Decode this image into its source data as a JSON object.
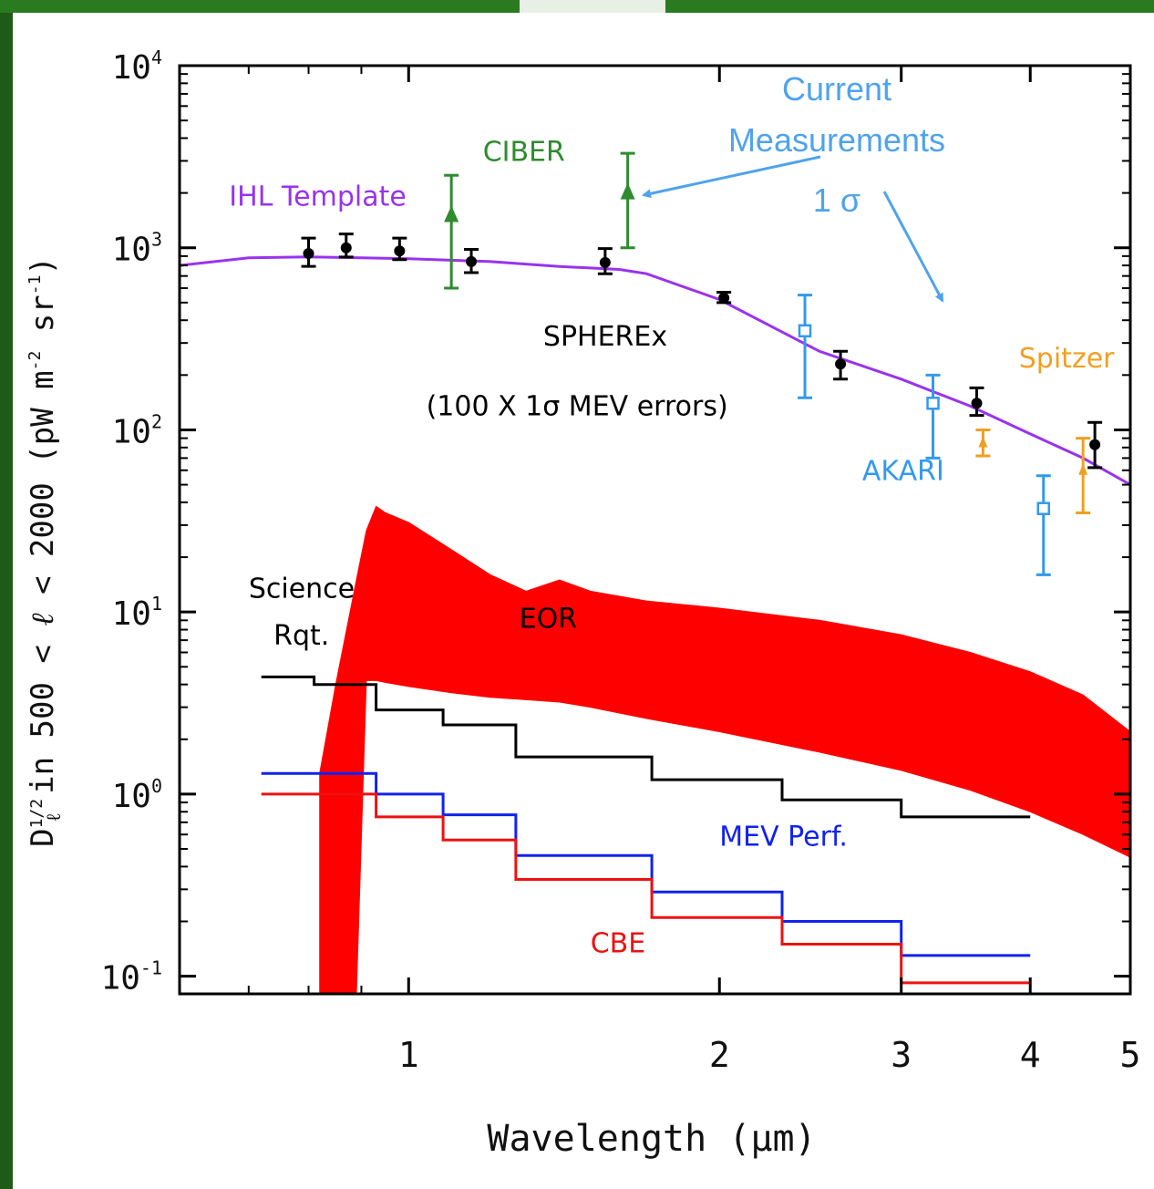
{
  "chart_data": {
    "type": "line",
    "xlabel": "Wavelength (μm)",
    "ylabel": "D_ℓ^{1/2} in 500 < ℓ < 2000 (pW m⁻² sr⁻¹)",
    "ylabel_parts": {
      "D": "D",
      "sub": "ℓ",
      "sup": "1/2",
      "mid": " in 500 < ",
      "ell": "ℓ",
      "tail": " < 2000  (pW m",
      "e1": "-2",
      "sr": " sr",
      "e2": "-1",
      "close": ")"
    },
    "xscale": "log",
    "yscale": "log",
    "xlim": [
      0.6,
      5.0
    ],
    "ylim": [
      0.08,
      10000
    ],
    "xticks": [
      1,
      2,
      3,
      4,
      5
    ],
    "xtick_labels": [
      "1",
      "2",
      "3",
      "4",
      "5"
    ],
    "yticks": [
      0.1,
      1,
      10,
      100,
      1000,
      10000
    ],
    "ytick_labels": [
      {
        "base": "10",
        "exp": "-1"
      },
      {
        "base": "10",
        "exp": "0"
      },
      {
        "base": "10",
        "exp": "1"
      },
      {
        "base": "10",
        "exp": "2"
      },
      {
        "base": "10",
        "exp": "3"
      },
      {
        "base": "10",
        "exp": "4"
      }
    ],
    "series": [
      {
        "name": "IHL Template",
        "kind": "line",
        "color": "#9933ee",
        "x": [
          0.6,
          0.7,
          0.8,
          0.9,
          1.0,
          1.2,
          1.4,
          1.6,
          1.7,
          2.0,
          2.5,
          3.0,
          3.5,
          4.0,
          4.5,
          5.0
        ],
        "y": [
          800,
          880,
          890,
          880,
          870,
          840,
          790,
          760,
          720,
          520,
          270,
          190,
          135,
          95,
          70,
          50
        ]
      },
      {
        "name": "SPHEREx",
        "kind": "errorbar",
        "color": "#000000",
        "x": [
          0.8,
          0.87,
          0.98,
          1.15,
          1.55,
          2.02,
          2.62,
          3.55,
          4.62
        ],
        "y": [
          930,
          1000,
          960,
          840,
          830,
          530,
          230,
          140,
          83
        ],
        "ylo": [
          790,
          890,
          860,
          730,
          720,
          500,
          190,
          120,
          62
        ],
        "yhi": [
          1130,
          1190,
          1130,
          980,
          990,
          570,
          270,
          170,
          110
        ]
      },
      {
        "name": "CIBER",
        "kind": "errorbar",
        "color": "#2e8b2e",
        "x": [
          1.1,
          1.63
        ],
        "y": [
          1500,
          2000
        ],
        "ylo": [
          600,
          1000
        ],
        "yhi": [
          2500,
          3300
        ]
      },
      {
        "name": "AKARI",
        "kind": "errorbar",
        "color": "#3399ee",
        "x": [
          2.42,
          3.22,
          4.12
        ],
        "y": [
          350,
          140,
          37
        ],
        "ylo": [
          150,
          70,
          16
        ],
        "yhi": [
          550,
          200,
          56
        ]
      },
      {
        "name": "Spitzer",
        "kind": "errorbar",
        "color": "#f0a020",
        "x": [
          3.6,
          4.5
        ],
        "y": [
          85,
          60
        ],
        "ylo": [
          72,
          35
        ],
        "yhi": [
          100,
          90
        ]
      },
      {
        "name": "Science Rqt.",
        "kind": "step",
        "color": "#000000",
        "edges": [
          0.72,
          0.81,
          0.93,
          1.08,
          1.27,
          1.72,
          2.3,
          3.0,
          4.0
        ],
        "values": [
          4.4,
          4.0,
          2.9,
          2.4,
          1.6,
          1.2,
          0.93,
          0.75
        ]
      },
      {
        "name": "MEV Perf.",
        "kind": "step",
        "color": "#1122ee",
        "edges": [
          0.72,
          0.93,
          1.08,
          1.27,
          1.72,
          2.3,
          3.0,
          4.0
        ],
        "values": [
          1.3,
          1.0,
          0.77,
          0.46,
          0.29,
          0.2,
          0.13
        ]
      },
      {
        "name": "CBE",
        "kind": "step",
        "color": "#ee1111",
        "edges": [
          0.72,
          0.93,
          1.08,
          1.27,
          1.72,
          2.3,
          3.0,
          4.0
        ],
        "values": [
          1.0,
          0.75,
          0.56,
          0.34,
          0.21,
          0.15,
          0.092
        ]
      },
      {
        "name": "EOR",
        "kind": "band",
        "color": "#ff0000",
        "x": [
          0.82,
          0.85,
          0.89,
          0.91,
          0.93,
          0.95,
          1.0,
          1.1,
          1.2,
          1.3,
          1.4,
          1.5,
          1.7,
          2.0,
          2.5,
          3.0,
          3.5,
          4.0,
          4.5,
          5.0
        ],
        "upper": [
          1.3,
          4.0,
          15,
          28,
          38,
          35,
          31,
          22,
          16,
          13,
          15,
          13,
          11.5,
          10.5,
          9.0,
          7.5,
          6.0,
          4.7,
          3.5,
          2.2
        ],
        "lower": [
          0.08,
          0.08,
          0.08,
          4.2,
          4.2,
          4.1,
          3.9,
          3.6,
          3.4,
          3.3,
          3.2,
          3.0,
          2.6,
          2.2,
          1.7,
          1.35,
          1.05,
          0.8,
          0.6,
          0.45
        ]
      }
    ],
    "text_labels": [
      {
        "id": "ihl",
        "text": "IHL Template",
        "x": 0.67,
        "y": 1700,
        "color": "#9933ee"
      },
      {
        "id": "ciber",
        "text": "CIBER",
        "x": 1.18,
        "y": 3000,
        "color": "#2e8b2e"
      },
      {
        "id": "spherex",
        "text": "SPHEREx",
        "x": 1.35,
        "y": 290,
        "color": "#000000"
      },
      {
        "id": "mev-errors",
        "text": "(100 X 1σ MEV errors)",
        "x": 1.04,
        "y": 120,
        "color": "#000000"
      },
      {
        "id": "spitzer",
        "text": "Spitzer",
        "x": 3.9,
        "y": 220,
        "color": "#f0a020"
      },
      {
        "id": "akari",
        "text": "AKARI",
        "x": 2.75,
        "y": 53,
        "color": "#3399ee"
      },
      {
        "id": "science",
        "text": "Science",
        "x": 0.7,
        "y": 12,
        "color": "#000000"
      },
      {
        "id": "rqt",
        "text": "Rqt.",
        "x": 0.74,
        "y": 6.6,
        "color": "#000000"
      },
      {
        "id": "eor",
        "text": "EOR",
        "x": 1.28,
        "y": 8.2,
        "color": "#000000"
      },
      {
        "id": "mev-perf",
        "text": "MEV Perf.",
        "x": 2.0,
        "y": 0.52,
        "color": "#1122ee"
      },
      {
        "id": "cbe",
        "text": "CBE",
        "x": 1.5,
        "y": 0.135,
        "color": "#ee1111"
      }
    ],
    "annotations": {
      "lines": [
        "Current",
        "Measurements",
        "1 σ"
      ],
      "color": "#4fa3ec"
    }
  }
}
